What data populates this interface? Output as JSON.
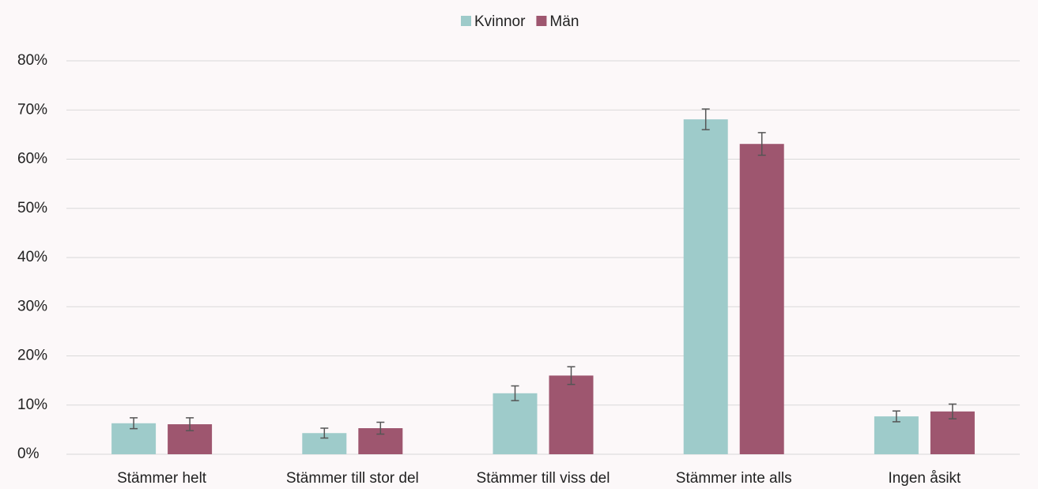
{
  "chart_data": {
    "type": "bar",
    "categories": [
      "Stämmer helt",
      "Stämmer till stor del",
      "Stämmer till viss del",
      "Stämmer inte alls",
      "Ingen åsikt"
    ],
    "series": [
      {
        "name": "Kvinnor",
        "color": "#9ecbca",
        "values": [
          6.3,
          4.3,
          12.4,
          68.1,
          7.7
        ],
        "errors": [
          1.1,
          1.0,
          1.5,
          2.1,
          1.1
        ]
      },
      {
        "name": "Män",
        "color": "#9e566f",
        "values": [
          6.1,
          5.3,
          16.0,
          63.1,
          8.7
        ],
        "errors": [
          1.3,
          1.2,
          1.8,
          2.3,
          1.5
        ]
      }
    ],
    "ylim": [
      0,
      80
    ],
    "yticks": [
      {
        "value": 0,
        "label": "0%"
      },
      {
        "value": 10,
        "label": "10%"
      },
      {
        "value": 20,
        "label": "20%"
      },
      {
        "value": 30,
        "label": "30%"
      },
      {
        "value": 40,
        "label": "40%"
      },
      {
        "value": 50,
        "label": "50%"
      },
      {
        "value": 60,
        "label": "60%"
      },
      {
        "value": 70,
        "label": "70%"
      },
      {
        "value": 80,
        "label": "80%"
      }
    ],
    "grid": true,
    "legend": "top"
  }
}
